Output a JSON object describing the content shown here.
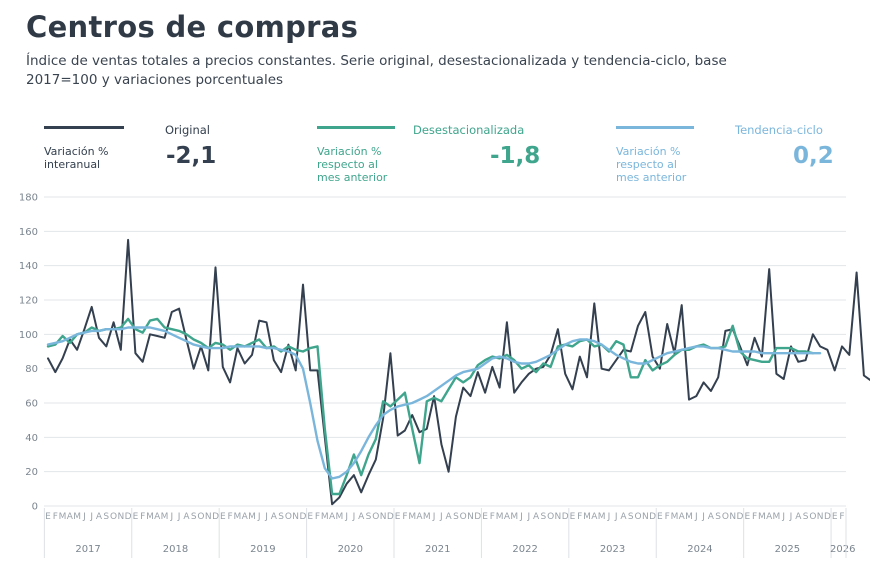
{
  "title": "Centros de compras",
  "subtitle": "Índice de ventas totales a precios constantes. Serie original, desestacionalizada y tendencia-ciclo, base 2017=100 y variaciones porcentuales",
  "kpis": [
    {
      "name": "Original",
      "desc1": "Variación %",
      "desc2": "interanual",
      "desc3": "",
      "value": "-2,1",
      "color": "#34404f"
    },
    {
      "name": "Desestacionalizada",
      "desc1": "Variación %",
      "desc2": "respecto al",
      "desc3": "mes anterior",
      "value": "-1,8",
      "color": "#3fa58c"
    },
    {
      "name": "Tendencia-ciclo",
      "desc1": "Variación %",
      "desc2": "respecto al",
      "desc3": "mes anterior",
      "value": "0,2",
      "color": "#7ab6dc"
    }
  ],
  "chart_data": {
    "type": "line",
    "ylim": [
      0,
      180
    ],
    "yticks": [
      0,
      20,
      40,
      60,
      80,
      100,
      120,
      140,
      160,
      180
    ],
    "month_labels": [
      "E",
      "F",
      "M",
      "A",
      "M",
      "J",
      "J",
      "A",
      "S",
      "O",
      "N",
      "D"
    ],
    "years": [
      "2017",
      "2018",
      "2019",
      "2020",
      "2021",
      "2022",
      "2023",
      "2024",
      "2025",
      "2026"
    ],
    "grid": true,
    "series": [
      {
        "name": "Original",
        "color": "#34404f",
        "values": [
          86,
          78,
          86,
          97,
          91,
          103,
          116,
          98,
          93,
          107,
          91,
          155,
          89,
          84,
          100,
          99,
          98,
          113,
          115,
          97,
          80,
          93,
          79,
          139,
          81,
          72,
          92,
          83,
          88,
          108,
          107,
          85,
          78,
          94,
          79,
          129,
          79,
          79,
          40,
          1,
          5,
          13,
          18,
          8,
          18,
          27,
          51,
          89,
          41,
          44,
          53,
          43,
          45,
          64,
          36,
          20,
          52,
          69,
          64,
          78,
          66,
          81,
          69,
          107,
          66,
          72,
          77,
          80,
          81,
          88,
          103,
          77,
          68,
          87,
          75,
          118,
          80,
          79,
          85,
          91,
          90,
          105,
          113,
          87,
          80,
          106,
          89,
          117,
          62,
          64,
          72,
          67,
          75,
          102,
          103,
          93,
          82,
          98,
          87,
          138,
          77,
          74,
          93,
          84,
          85,
          100,
          93,
          91,
          79,
          93,
          88,
          136,
          76,
          73
        ],
        "display_offset_months": 0
      },
      {
        "name": "Desestacionalizada",
        "color": "#3fa58c",
        "values": [
          93,
          94,
          99,
          95,
          100,
          101,
          104,
          102,
          103,
          103,
          104,
          109,
          103,
          101,
          108,
          109,
          104,
          103,
          102,
          100,
          97,
          95,
          92,
          95,
          94,
          91,
          94,
          93,
          95,
          97,
          92,
          93,
          90,
          93,
          91,
          90,
          92,
          93,
          45,
          7,
          7,
          18,
          30,
          18,
          30,
          39,
          61,
          58,
          62,
          66,
          45,
          25,
          61,
          63,
          61,
          68,
          75,
          72,
          75,
          82,
          85,
          87,
          86,
          88,
          85,
          80,
          82,
          78,
          83,
          81,
          93,
          94,
          93,
          96,
          97,
          93,
          94,
          90,
          96,
          94,
          75,
          75,
          85,
          79,
          82,
          84,
          88,
          91,
          91,
          93,
          94,
          92,
          92,
          93,
          105,
          90,
          86,
          85,
          84,
          84,
          92,
          92,
          92,
          90,
          90,
          89
        ]
      },
      {
        "name": "Tendencia-ciclo",
        "color": "#7ab6dc",
        "values": [
          94,
          95,
          96,
          98,
          100,
          101,
          102,
          102,
          103,
          103,
          103,
          104,
          104,
          104,
          104,
          103,
          102,
          100,
          98,
          96,
          94,
          93,
          92,
          92,
          92,
          93,
          93,
          93,
          93,
          93,
          92,
          92,
          91,
          90,
          88,
          80,
          60,
          38,
          22,
          16,
          17,
          20,
          25,
          32,
          40,
          47,
          53,
          56,
          58,
          59,
          60,
          62,
          64,
          67,
          70,
          73,
          76,
          78,
          79,
          80,
          83,
          86,
          87,
          86,
          84,
          83,
          83,
          84,
          86,
          88,
          91,
          94,
          96,
          97,
          97,
          96,
          94,
          91,
          88,
          86,
          84,
          83,
          83,
          85,
          87,
          89,
          90,
          91,
          92,
          93,
          93,
          92,
          92,
          91,
          90,
          90,
          90,
          90,
          89,
          89,
          89,
          89,
          89,
          89,
          89,
          89,
          89
        ]
      }
    ]
  }
}
